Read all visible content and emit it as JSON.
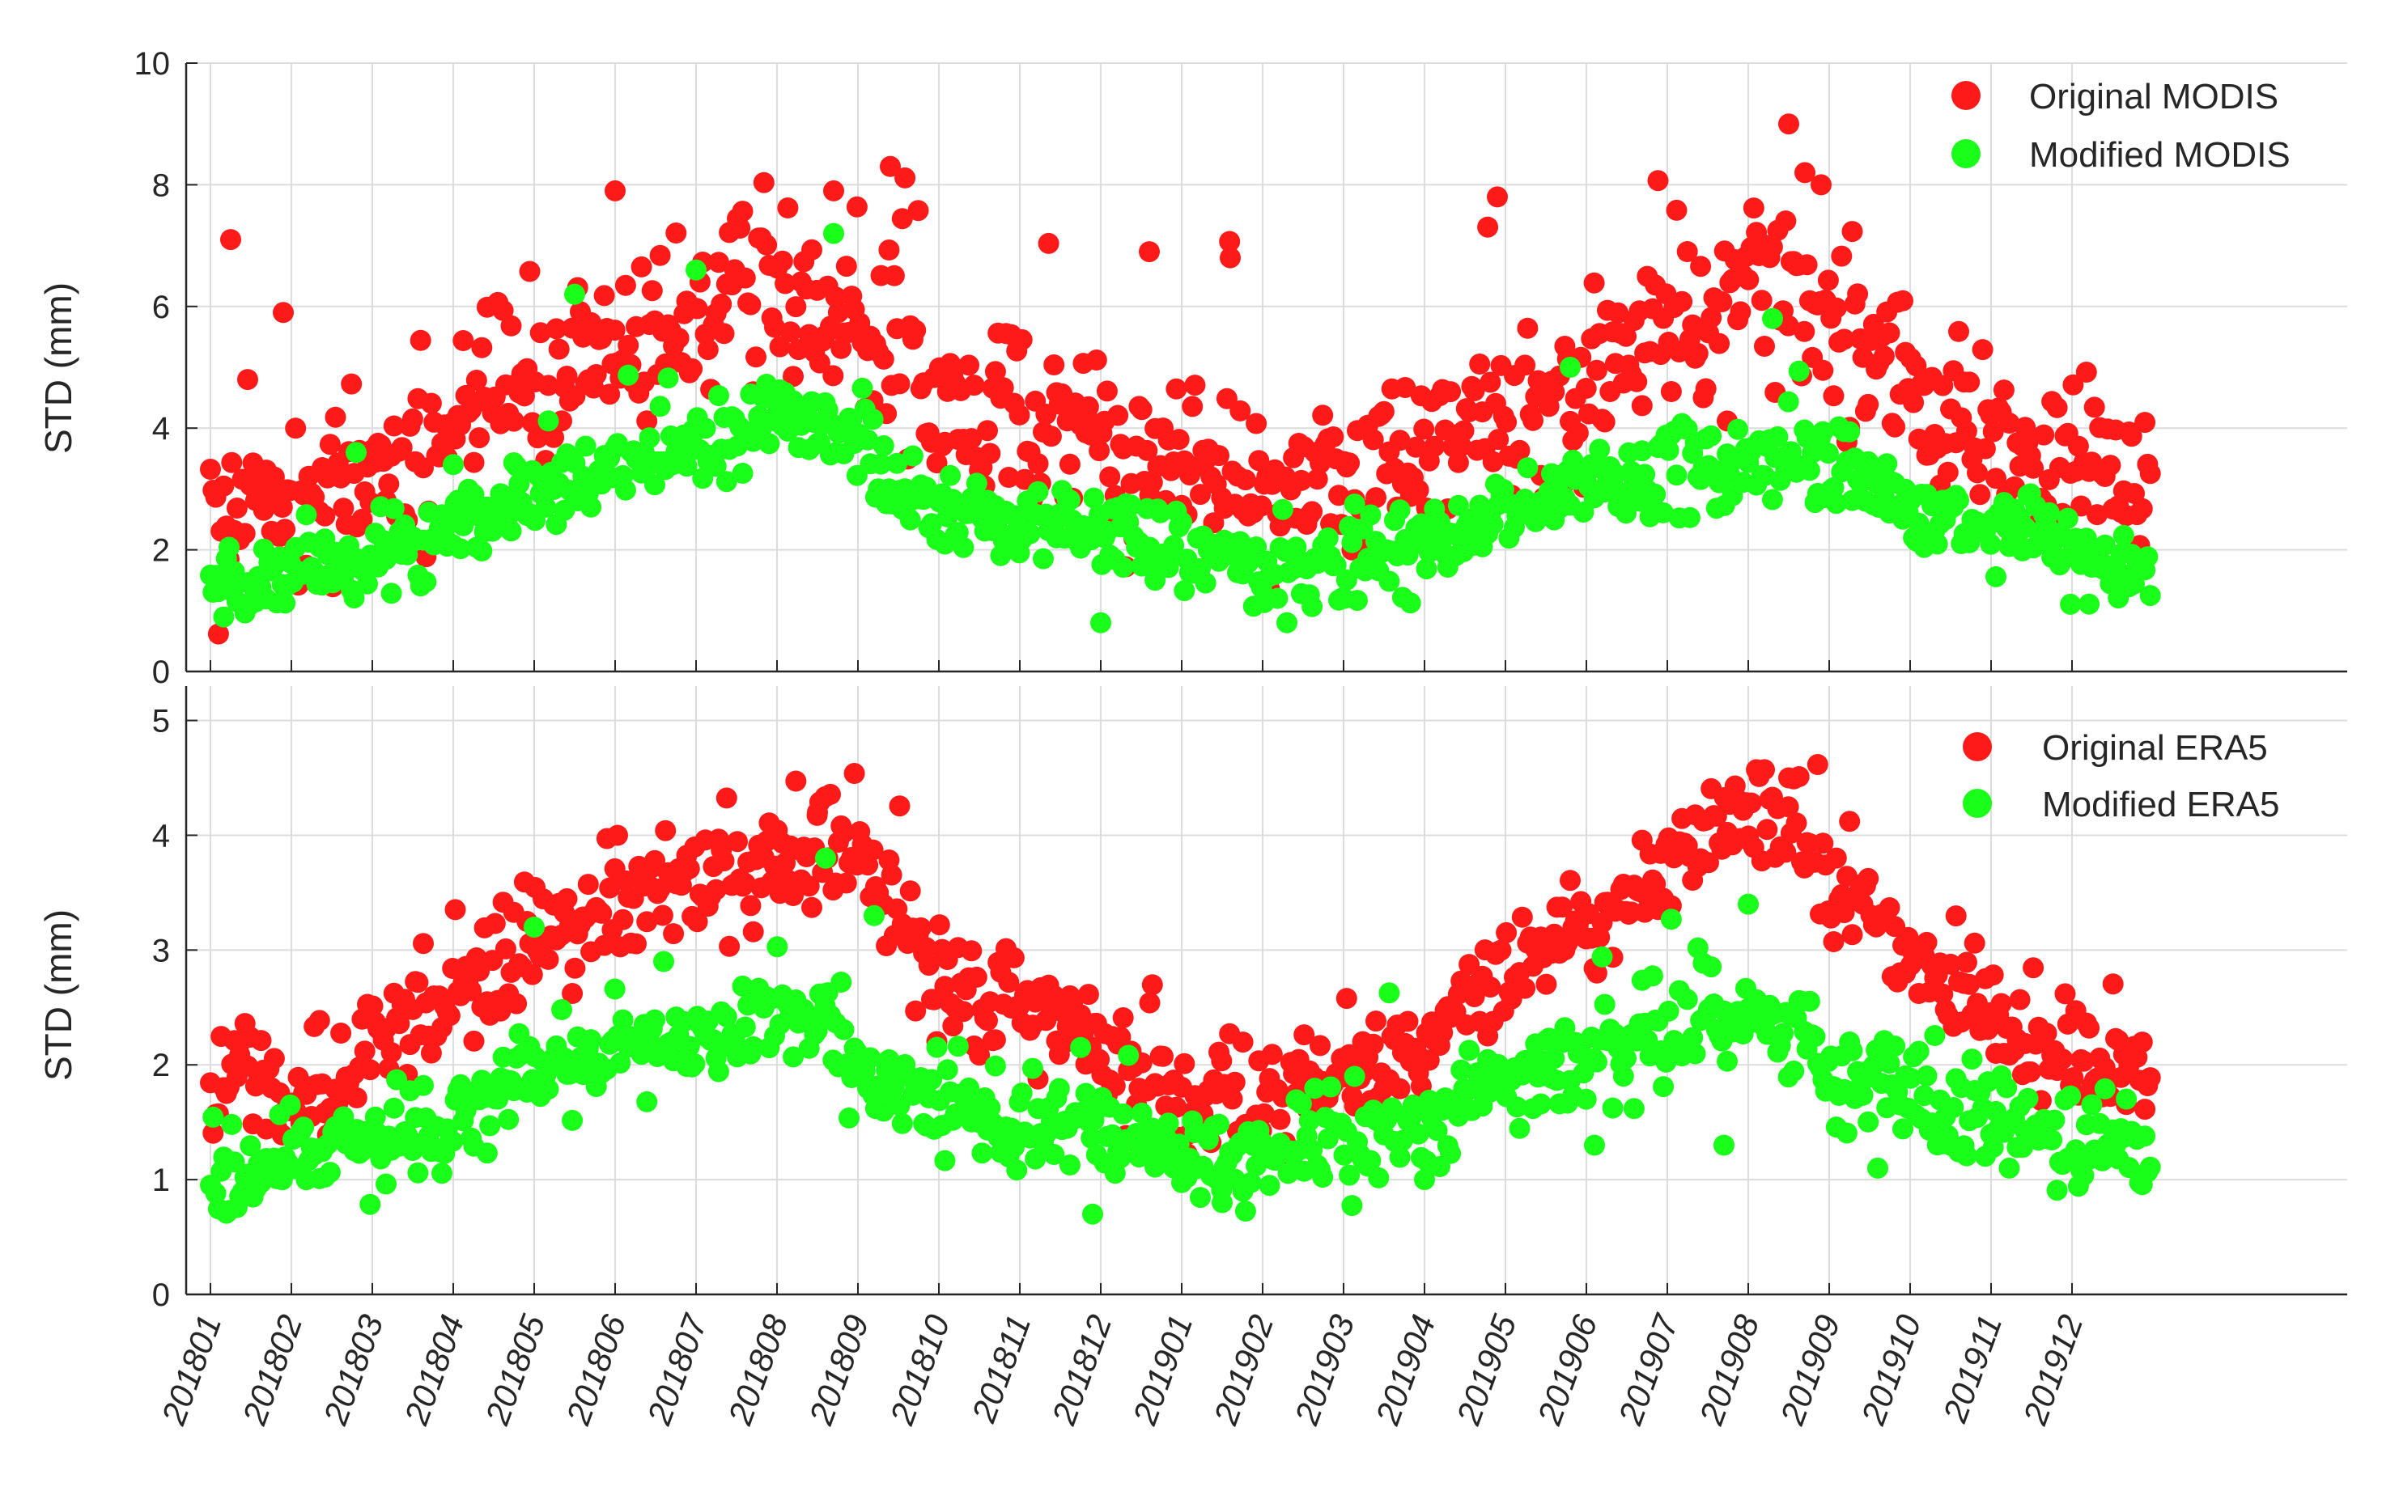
{
  "colors": {
    "original": "#ff1a1a",
    "modified": "#19ff19",
    "grid": "#dcdcdc",
    "axis": "#262626"
  },
  "x_ticks": [
    "201801",
    "201802",
    "201803",
    "201804",
    "201805",
    "201806",
    "201807",
    "201808",
    "201809",
    "201810",
    "201811",
    "201812",
    "201901",
    "201902",
    "201903",
    "201904",
    "201905",
    "201906",
    "201907",
    "201908",
    "201909",
    "201910",
    "201911",
    "201912"
  ],
  "chart_data": [
    {
      "type": "scatter",
      "title": "",
      "xlabel": "",
      "ylabel": "STD (mm)",
      "ylim": [
        0,
        10
      ],
      "yticks": [
        "0",
        "2",
        "4",
        "6",
        "8",
        "10"
      ],
      "xlim": [
        0,
        27
      ],
      "grid": true,
      "legend_position": "top-right",
      "series": [
        {
          "name": "Original MODIS",
          "color": "#ff1a1a",
          "n_points": 730,
          "keypoints": [
            [
              0,
              2.6
            ],
            [
              1,
              2.4
            ],
            [
              2,
              3.2
            ],
            [
              3,
              4.0
            ],
            [
              4,
              4.6
            ],
            [
              5,
              5.2
            ],
            [
              6,
              5.8
            ],
            [
              7,
              6.3
            ],
            [
              7.8,
              5.9
            ],
            [
              8.5,
              5.0
            ],
            [
              9,
              4.3
            ],
            [
              10,
              4.0
            ],
            [
              11,
              3.8
            ],
            [
              12,
              3.5
            ],
            [
              13,
              3.1
            ],
            [
              14,
              3.3
            ],
            [
              15,
              3.6
            ],
            [
              16,
              4.1
            ],
            [
              17,
              4.7
            ],
            [
              18,
              5.5
            ],
            [
              19,
              6.3
            ],
            [
              19.6,
              6.1
            ],
            [
              20.5,
              5.3
            ],
            [
              21,
              4.7
            ],
            [
              22,
              3.9
            ],
            [
              23,
              3.3
            ],
            [
              24,
              3.0
            ]
          ],
          "spread": 0.75,
          "outliers": [
            [
              0.25,
              7.1
            ],
            [
              0.9,
              5.9
            ],
            [
              5.0,
              7.9
            ],
            [
              7.7,
              7.9
            ],
            [
              8.4,
              8.3
            ],
            [
              11.6,
              6.9
            ],
            [
              12.6,
              6.8
            ],
            [
              15.9,
              7.8
            ],
            [
              19.5,
              9.0
            ],
            [
              19.7,
              8.2
            ],
            [
              19.9,
              8.0
            ]
          ]
        },
        {
          "name": "Modified MODIS",
          "color": "#19ff19",
          "n_points": 730,
          "keypoints": [
            [
              0,
              1.5
            ],
            [
              1,
              1.4
            ],
            [
              2,
              1.8
            ],
            [
              3,
              2.3
            ],
            [
              4,
              2.8
            ],
            [
              5,
              3.3
            ],
            [
              6,
              3.7
            ],
            [
              7,
              4.0
            ],
            [
              7.8,
              3.8
            ],
            [
              8.5,
              3.0
            ],
            [
              9,
              2.6
            ],
            [
              10,
              2.4
            ],
            [
              11,
              2.2
            ],
            [
              12,
              1.9
            ],
            [
              13,
              1.7
            ],
            [
              14,
              1.7
            ],
            [
              15,
              2.0
            ],
            [
              16,
              2.6
            ],
            [
              17,
              3.0
            ],
            [
              18,
              3.3
            ],
            [
              19,
              3.5
            ],
            [
              20,
              3.5
            ],
            [
              20.5,
              3.3
            ],
            [
              21,
              2.8
            ],
            [
              22,
              2.4
            ],
            [
              23,
              2.0
            ],
            [
              24,
              1.6
            ]
          ],
          "spread": 0.32,
          "outliers": [
            [
              1.8,
              3.6
            ],
            [
              3.0,
              3.4
            ],
            [
              4.5,
              6.2
            ],
            [
              6.0,
              6.6
            ],
            [
              7.7,
              7.2
            ],
            [
              11.0,
              0.8
            ],
            [
              13.3,
              0.8
            ],
            [
              16.8,
              5.0
            ],
            [
              19.3,
              5.8
            ]
          ]
        }
      ]
    },
    {
      "type": "scatter",
      "title": "",
      "xlabel": "",
      "ylabel": "STD (mm)",
      "ylim": [
        0,
        5.3
      ],
      "yticks": [
        "0",
        "1",
        "2",
        "3",
        "4",
        "5"
      ],
      "xlim": [
        0,
        27
      ],
      "grid": true,
      "legend_position": "top-right",
      "series": [
        {
          "name": "Original ERA5",
          "color": "#ff1a1a",
          "n_points": 730,
          "keypoints": [
            [
              0,
              1.8
            ],
            [
              0.5,
              1.9
            ],
            [
              1,
              1.6
            ],
            [
              1.5,
              1.7
            ],
            [
              2,
              2.2
            ],
            [
              3,
              2.6
            ],
            [
              4,
              3.0
            ],
            [
              5,
              3.3
            ],
            [
              6,
              3.6
            ],
            [
              7,
              3.8
            ],
            [
              7.5,
              3.9
            ],
            [
              8,
              3.7
            ],
            [
              8.5,
              3.3
            ],
            [
              9,
              2.7
            ],
            [
              10,
              2.5
            ],
            [
              11,
              2.2
            ],
            [
              12,
              1.8
            ],
            [
              12.5,
              1.6
            ],
            [
              13,
              1.7
            ],
            [
              14,
              1.9
            ],
            [
              15,
              2.2
            ],
            [
              16,
              2.8
            ],
            [
              17,
              3.2
            ],
            [
              18,
              3.8
            ],
            [
              18.6,
              4.1
            ],
            [
              19,
              4.1
            ],
            [
              19.6,
              4.0
            ],
            [
              20,
              3.6
            ],
            [
              20.5,
              3.3
            ],
            [
              21,
              2.9
            ],
            [
              22,
              2.4
            ],
            [
              23,
              2.0
            ],
            [
              24,
              2.0
            ]
          ],
          "spread": 0.25,
          "outliers": [
            [
              7.5,
              4.2
            ],
            [
              19.5,
              4.5
            ]
          ]
        },
        {
          "name": "Modified ERA5",
          "color": "#19ff19",
          "n_points": 730,
          "keypoints": [
            [
              0,
              1.1
            ],
            [
              1,
              1.1
            ],
            [
              2,
              1.3
            ],
            [
              3,
              1.6
            ],
            [
              4,
              1.9
            ],
            [
              5,
              2.1
            ],
            [
              6,
              2.2
            ],
            [
              7,
              2.4
            ],
            [
              7.5,
              2.4
            ],
            [
              8,
              2.0
            ],
            [
              9,
              1.7
            ],
            [
              10,
              1.5
            ],
            [
              11,
              1.4
            ],
            [
              12,
              1.2
            ],
            [
              13,
              1.2
            ],
            [
              14,
              1.3
            ],
            [
              15,
              1.5
            ],
            [
              16,
              1.8
            ],
            [
              17,
              2.0
            ],
            [
              18,
              2.3
            ],
            [
              19,
              2.4
            ],
            [
              19.6,
              2.3
            ],
            [
              20,
              2.0
            ],
            [
              21,
              1.7
            ],
            [
              22,
              1.5
            ],
            [
              23,
              1.3
            ],
            [
              24,
              1.2
            ]
          ],
          "spread": 0.2,
          "outliers": [
            [
              4.0,
              3.2
            ],
            [
              5.6,
              2.9
            ],
            [
              7.6,
              3.8
            ],
            [
              8.2,
              3.3
            ],
            [
              10.9,
              0.7
            ],
            [
              12.5,
              0.8
            ],
            [
              15.0,
              1.0
            ],
            [
              17.1,
              1.3
            ],
            [
              18.7,
              1.3
            ],
            [
              19.0,
              3.4
            ],
            [
              20.6,
              1.1
            ]
          ]
        }
      ]
    }
  ]
}
